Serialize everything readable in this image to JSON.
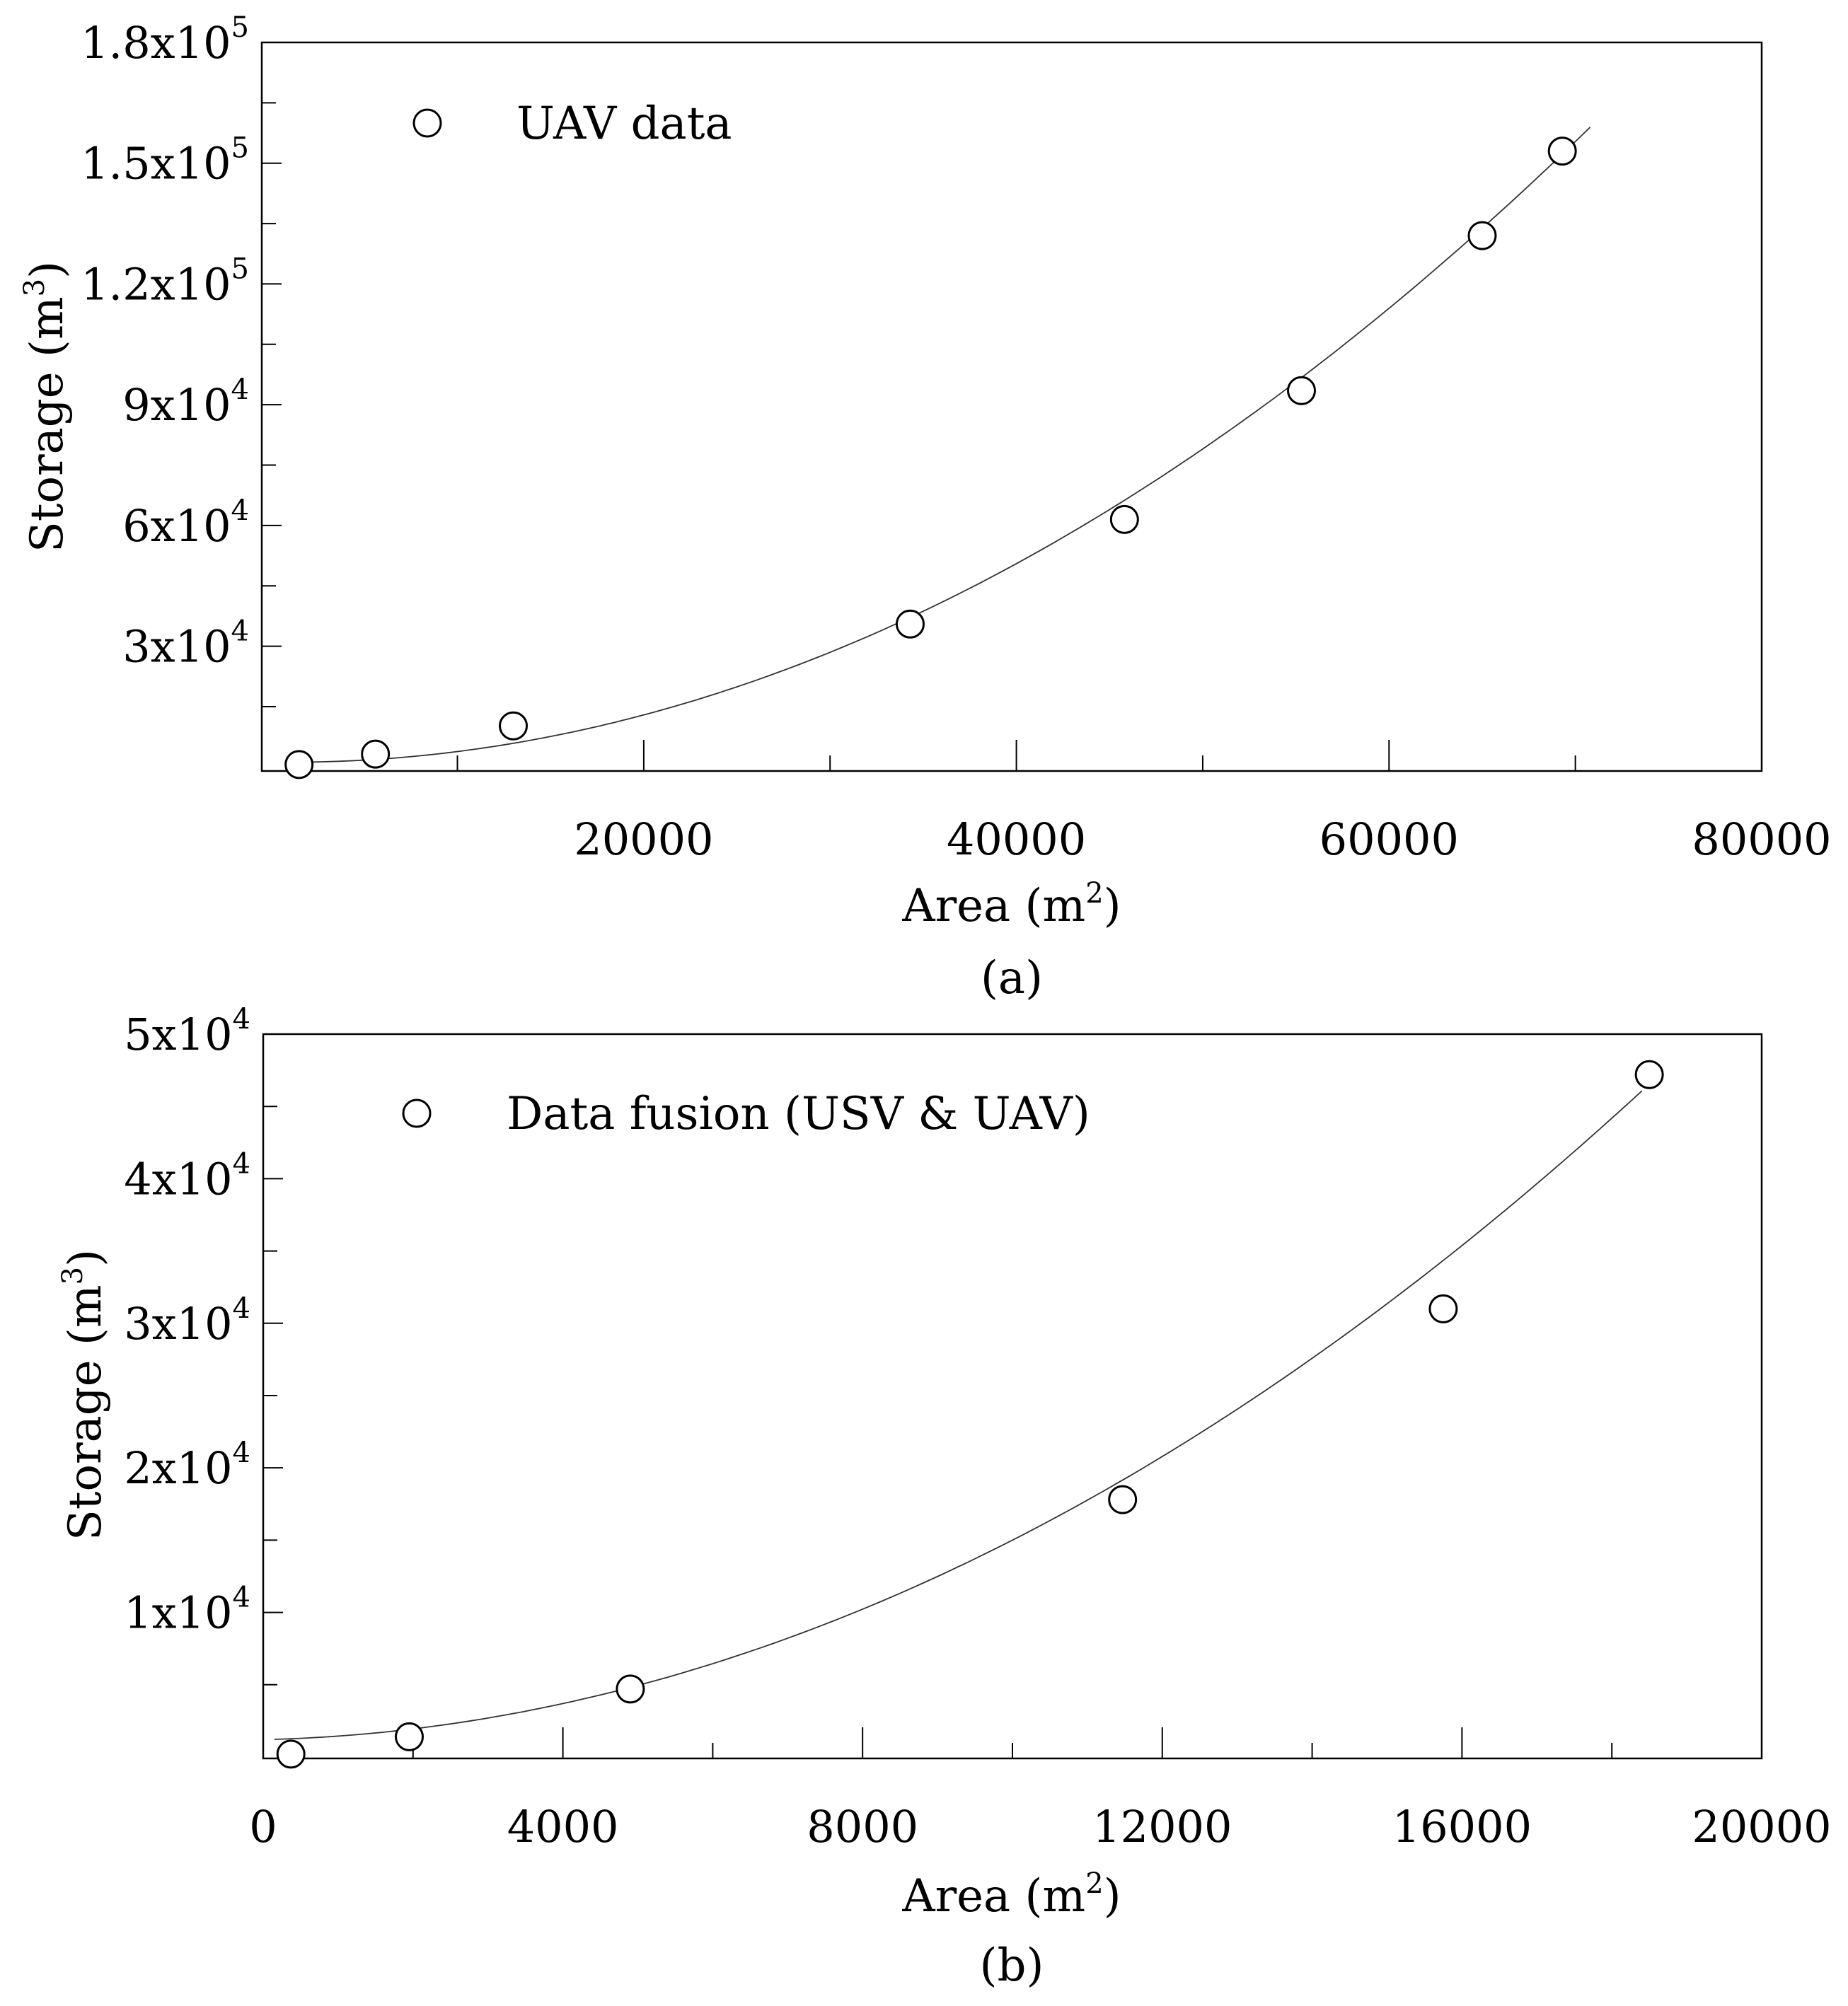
{
  "chart_data": [
    {
      "type": "scatter",
      "panel_label": "(a)",
      "legend": {
        "label": "UAV data",
        "placement": "top-left"
      },
      "xlabel": "Area (m",
      "xlabel_sup": "2",
      "xlabel_end": ")",
      "ylabel": "Storage (m",
      "ylabel_sup": "3",
      "ylabel_end": ")",
      "xlim": [
        -500,
        80000
      ],
      "ylim": [
        -1000,
        180000
      ],
      "x_ticks": [
        {
          "value": 20000,
          "label": "20000"
        },
        {
          "value": 40000,
          "label": "40000"
        },
        {
          "value": 60000,
          "label": "60000"
        },
        {
          "value": 80000,
          "label": "80000"
        }
      ],
      "x_minor_ticks": [
        10000,
        30000,
        50000,
        70000
      ],
      "y_ticks": [
        {
          "value": 30000,
          "mant": "3x10",
          "exp": "4"
        },
        {
          "value": 60000,
          "mant": "6x10",
          "exp": "4"
        },
        {
          "value": 90000,
          "mant": "9x10",
          "exp": "4"
        },
        {
          "value": 120000,
          "mant": "1.2x10",
          "exp": "5"
        },
        {
          "value": 150000,
          "mant": "1.5x10",
          "exp": "5"
        },
        {
          "value": 180000,
          "mant": "1.8x10",
          "exp": "5"
        }
      ],
      "y_minor_ticks": [
        15000,
        45000,
        75000,
        105000,
        135000,
        165000
      ],
      "series": [
        {
          "x": [
            1500,
            5600,
            13000,
            34300,
            45800,
            55300,
            65000,
            69300
          ],
          "y": [
            600,
            3200,
            10200,
            35500,
            61500,
            93500,
            132000,
            153000
          ]
        }
      ],
      "fit": {
        "type": "polynomial",
        "coefficients": [
          1200,
          -0.06,
          3.232e-05
        ],
        "x_range": [
          1000,
          70800
        ]
      }
    },
    {
      "type": "scatter",
      "panel_label": "(b)",
      "legend": {
        "label": "Data fusion (USV & UAV)",
        "placement": "top-left"
      },
      "xlabel": "Area (m",
      "xlabel_sup": "2",
      "xlabel_end": ")",
      "ylabel": "Storage (m",
      "ylabel_sup": "3",
      "ylabel_end": ")",
      "xlim": [
        0,
        20000
      ],
      "ylim": [
        -100,
        50000
      ],
      "x_ticks": [
        {
          "value": 0,
          "label": "0"
        },
        {
          "value": 4000,
          "label": "4000"
        },
        {
          "value": 8000,
          "label": "8000"
        },
        {
          "value": 12000,
          "label": "12000"
        },
        {
          "value": 16000,
          "label": "16000"
        },
        {
          "value": 20000,
          "label": "20000"
        }
      ],
      "x_minor_ticks": [
        2000,
        6000,
        10000,
        14000,
        18000
      ],
      "y_ticks": [
        {
          "value": 10000,
          "mant": "1x10",
          "exp": "4"
        },
        {
          "value": 20000,
          "mant": "2x10",
          "exp": "4"
        },
        {
          "value": 30000,
          "mant": "3x10",
          "exp": "4"
        },
        {
          "value": 40000,
          "mant": "4x10",
          "exp": "4"
        },
        {
          "value": 50000,
          "mant": "5x10",
          "exp": "4"
        }
      ],
      "y_minor_ticks": [
        5000,
        15000,
        25000,
        35000,
        45000
      ],
      "series": [
        {
          "x": [
            370,
            1950,
            4900,
            11470,
            15750,
            18500
          ],
          "y": [
            200,
            1400,
            4700,
            17800,
            31000,
            47200
          ]
        }
      ],
      "fit": {
        "type": "polynomial",
        "coefficients": [
          1200,
          0.12,
          0.000126
        ],
        "x_range": [
          150,
          18400
        ]
      }
    }
  ]
}
